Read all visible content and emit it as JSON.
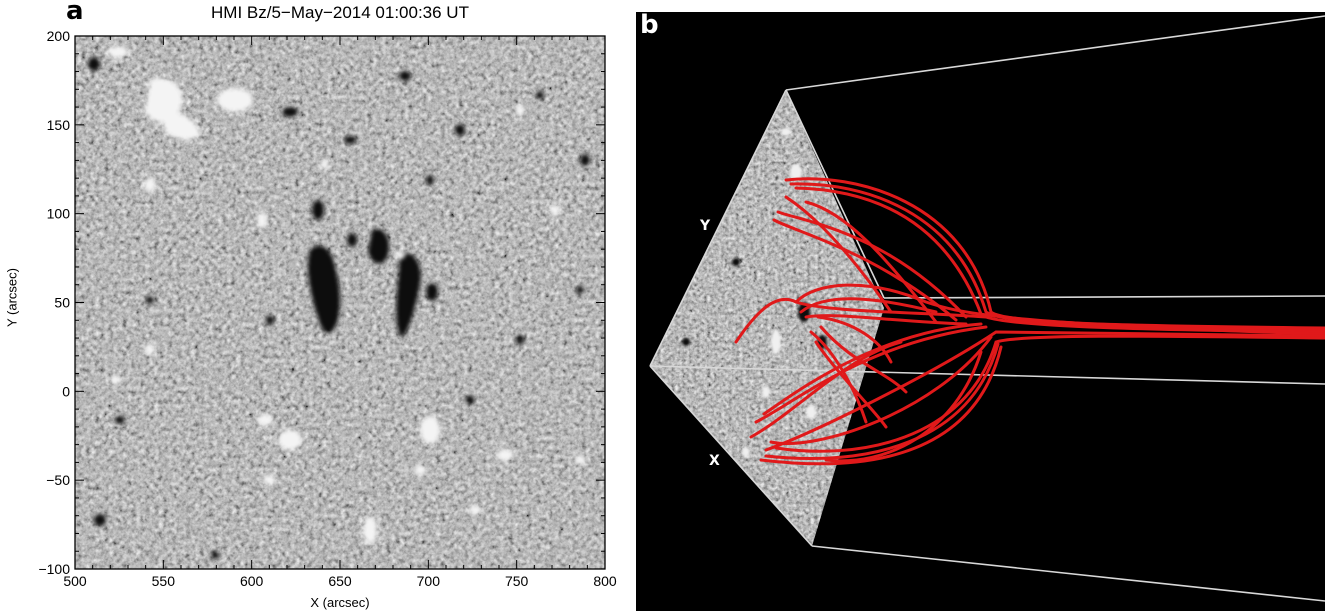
{
  "panel_a": {
    "letter": "a",
    "title": "HMI Bz/5−May−2014 01:00:36 UT",
    "xlabel": "X (arcsec)",
    "ylabel": "Y (arcsec)",
    "xticks": [
      "500",
      "550",
      "600",
      "650",
      "700",
      "750",
      "800"
    ],
    "yticks": [
      "200",
      "150",
      "100",
      "50",
      "0",
      "−50",
      "−100"
    ],
    "x_range": [
      500,
      800
    ],
    "y_range": [
      -100,
      200
    ]
  },
  "panel_b": {
    "letter": "b",
    "axis_y": "Y",
    "axis_x": "X",
    "fieldline_color": "#e0191a",
    "box_color": "#d8d8d8"
  }
}
